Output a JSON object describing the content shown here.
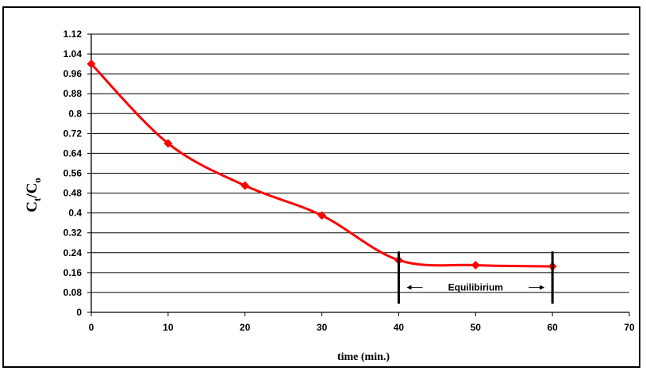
{
  "chart_data": {
    "type": "line",
    "title": "",
    "xlabel": "time (min.)",
    "ylabel_main": "C",
    "ylabel_sub1": "t",
    "ylabel_mid": "/C",
    "ylabel_sub2": "o",
    "xlim": [
      0,
      70
    ],
    "ylim": [
      0,
      1.12
    ],
    "x_ticks": [
      "0",
      "10",
      "20",
      "30",
      "40",
      "50",
      "60",
      "70"
    ],
    "y_ticks": [
      "0",
      "0.08",
      "0.16",
      "0.24",
      "0.32",
      "0.4",
      "0.48",
      "0.56",
      "0.64",
      "0.72",
      "0.8",
      "0.88",
      "0.96",
      "1.04",
      "1.12"
    ],
    "grid": "horizontal",
    "legend": "none",
    "series": [
      {
        "color": "#ff0000",
        "marker": "diamond",
        "smooth": true,
        "x": [
          0,
          10,
          20,
          30,
          40,
          50,
          60
        ],
        "y": [
          1.0,
          0.68,
          0.51,
          0.39,
          0.21,
          0.19,
          0.185
        ]
      }
    ],
    "annotation": {
      "text": "Equilibirium",
      "x_start": 40,
      "x_end": 60
    }
  }
}
